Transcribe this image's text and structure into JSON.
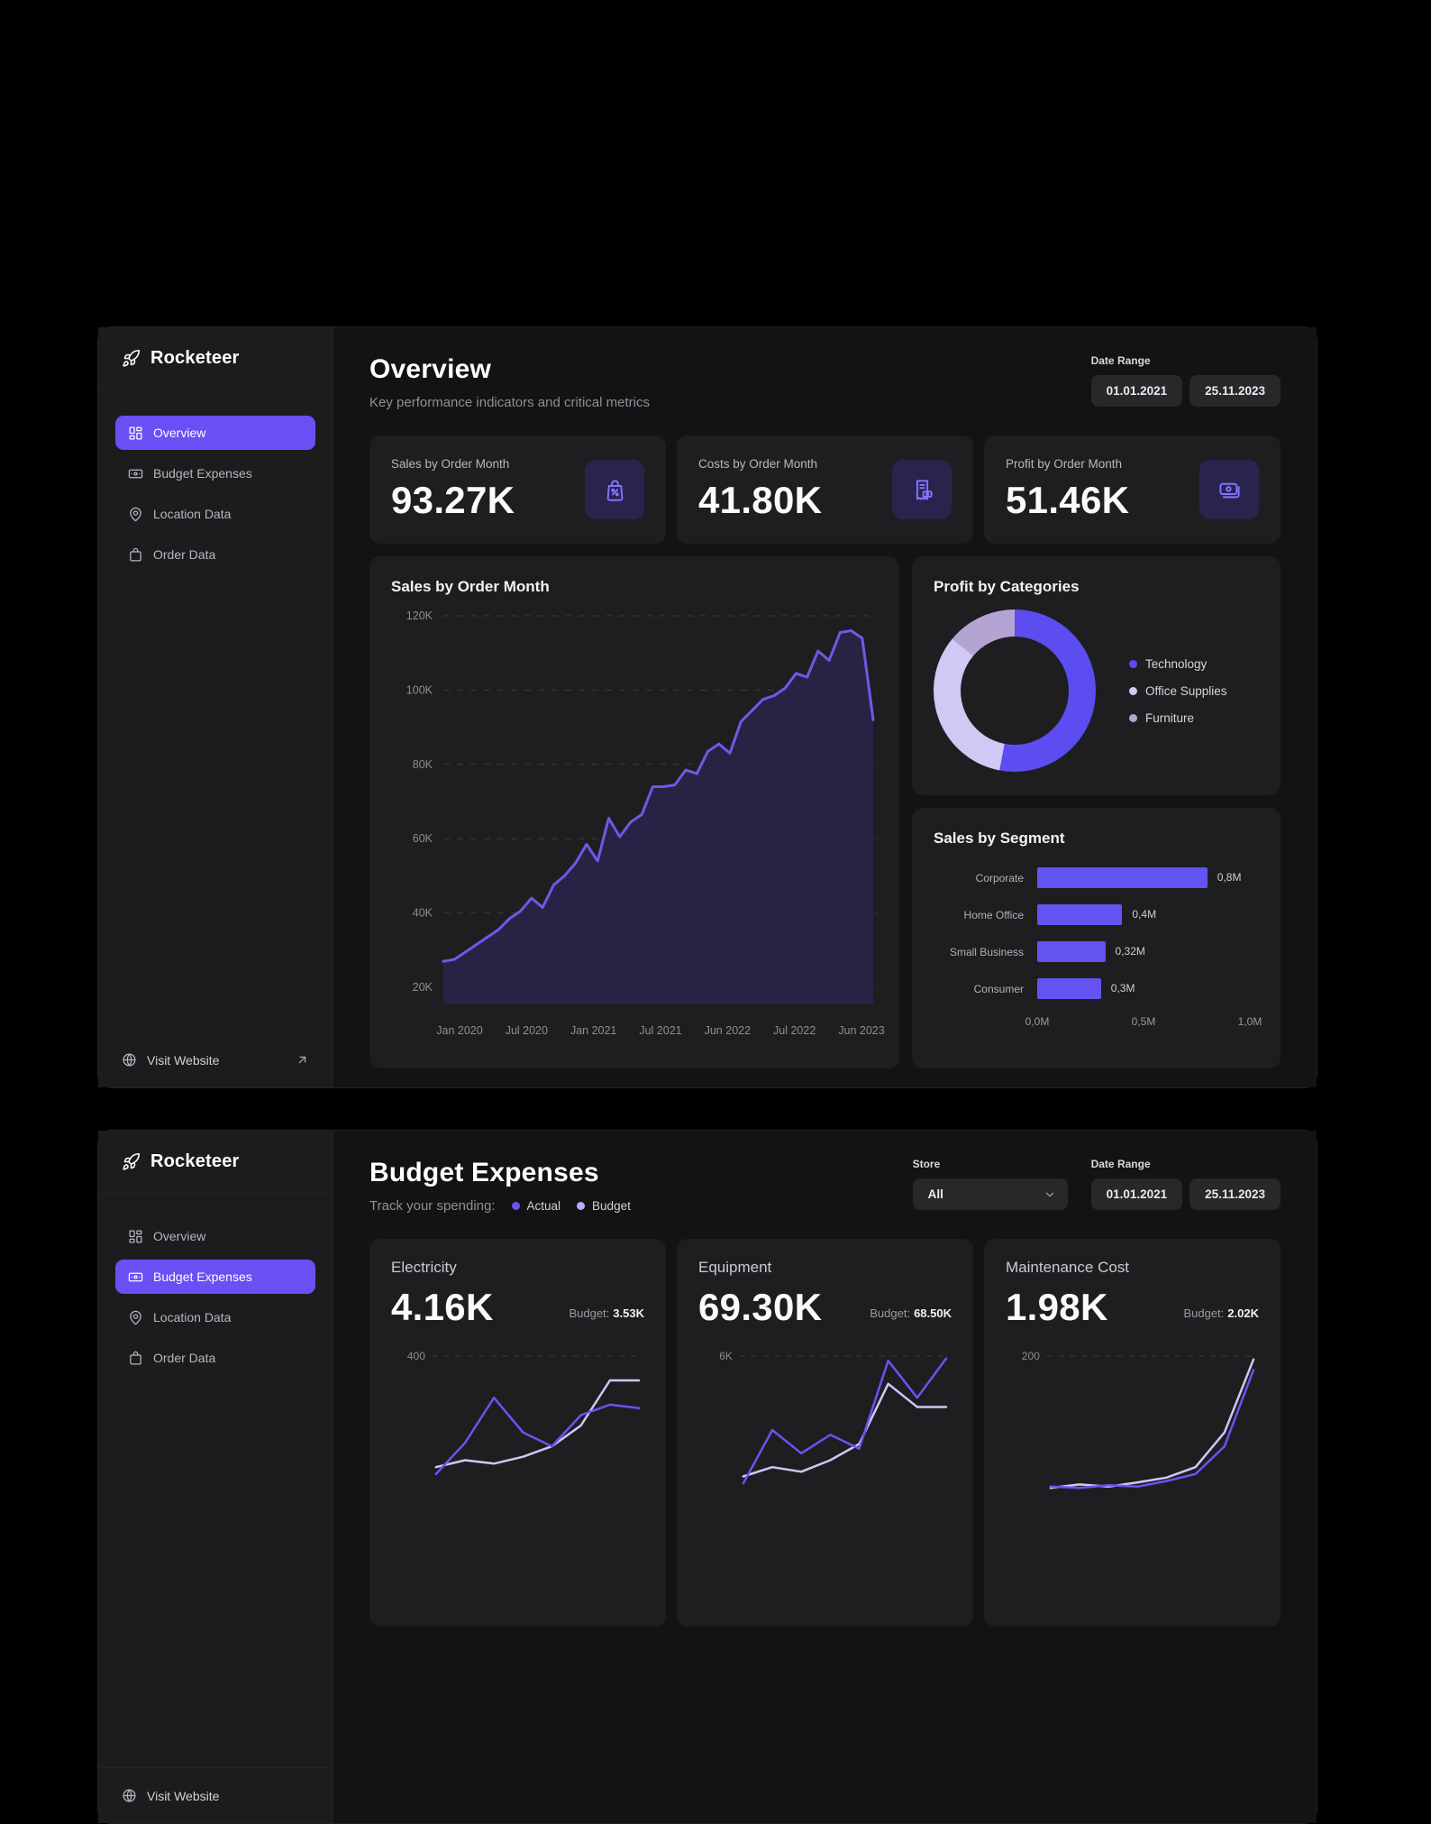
{
  "brand": {
    "name": "Rocketeer"
  },
  "sidebar": {
    "items": [
      {
        "label": "Overview"
      },
      {
        "label": "Budget Expenses"
      },
      {
        "label": "Location Data"
      },
      {
        "label": "Order Data"
      }
    ],
    "footer_label": "Visit Website"
  },
  "overview_panel": {
    "header": {
      "title": "Overview",
      "subtitle": "Key performance indicators and critical metrics"
    },
    "date_range": {
      "label": "Date Range",
      "start": "01.01.2021",
      "end": "25.11.2023"
    },
    "kpis": [
      {
        "label": "Sales by Order Month",
        "value": "93.27K",
        "icon": "bag-percent-icon"
      },
      {
        "label": "Costs by Order Month",
        "value": "41.80K",
        "icon": "receipt-icon"
      },
      {
        "label": "Profit by Order Month",
        "value": "51.46K",
        "icon": "banknotes-icon"
      }
    ]
  },
  "budget_panel": {
    "header": {
      "title": "Budget Expenses",
      "subtitle": "Track your spending:"
    },
    "legend": [
      {
        "label": "Actual",
        "color": "#6a53f2"
      },
      {
        "label": "Budget",
        "color": "#b9abf5"
      }
    ],
    "store": {
      "label": "Store",
      "value": "All"
    },
    "date_range": {
      "label": "Date Range",
      "start": "01.01.2021",
      "end": "25.11.2023"
    },
    "cards": [
      {
        "title": "Electricity",
        "value": "4.16K",
        "budget_label": "Budget:",
        "budget": "3.53K"
      },
      {
        "title": "Equipment",
        "value": "69.30K",
        "budget_label": "Budget:",
        "budget": "68.50K"
      },
      {
        "title": "Maintenance Cost",
        "value": "1.98K",
        "budget_label": "Budget:",
        "budget": "2.02K"
      }
    ]
  },
  "colors": {
    "accent": "#6a4ff5",
    "line": "#6c5ae8",
    "area_fill": "#272345",
    "bar": "#6353f0",
    "grid": "#3b3b3e",
    "tick_text": "#8e8e92"
  },
  "chart_data": [
    {
      "type": "area",
      "title": "Sales by Order Month",
      "unit": "K",
      "ylim": [
        20,
        120
      ],
      "y_ticks": [
        "120K",
        "100K",
        "80K",
        "60K",
        "40K",
        "20K"
      ],
      "x_ticks": [
        "Jan 2020",
        "Jul 2020",
        "Jan 2021",
        "Jul 2021",
        "Jun 2022",
        "Jul 2022",
        "Jun 2023"
      ],
      "values": [
        27,
        27.5,
        29.5,
        31.5,
        33.5,
        35.5,
        38.5,
        40.5,
        44,
        41.5,
        47.5,
        50,
        53.5,
        58.5,
        54,
        65.5,
        60.5,
        64.5,
        66.5,
        74,
        74,
        74.5,
        78.5,
        77.5,
        83.5,
        85.5,
        83,
        91.5,
        94.5,
        97.5,
        98.5,
        100.5,
        104.5,
        103.5,
        110.5,
        108,
        115.5,
        116,
        114,
        92
      ],
      "grid": true,
      "legend_position": "none"
    },
    {
      "type": "pie",
      "title": "Profit by Categories",
      "donut": true,
      "legend_position": "right",
      "segments": [
        {
          "label": "Technology",
          "pct": 53,
          "color": "#5b4df0"
        },
        {
          "label": "Office Supplies",
          "pct": 33,
          "color": "#cfc9f4"
        },
        {
          "label": "Furniture",
          "pct": 14,
          "color": "#b4a4d4"
        }
      ]
    },
    {
      "type": "bar",
      "title": "Sales by Segment",
      "orientation": "horizontal",
      "categories": [
        "Corporate",
        "Home Office",
        "Small Business",
        "Consumer"
      ],
      "values": [
        0.8,
        0.4,
        0.32,
        0.3
      ],
      "value_labels": [
        "0,8M",
        "0,4M",
        "0,32M",
        "0,3M"
      ],
      "x_ticks": [
        "0,0M",
        "0,5M",
        "1,0M"
      ],
      "xlim": [
        0,
        1.0
      ]
    },
    {
      "type": "line",
      "card": "Electricity",
      "gridline_label": "400",
      "gridline_value": 400,
      "series": [
        {
          "name": "Budget",
          "color": "#cfc8f4",
          "values": [
            80,
            100,
            90,
            110,
            140,
            200,
            330,
            330
          ]
        },
        {
          "name": "Actual",
          "color": "#6a53f2",
          "values": [
            60,
            150,
            280,
            180,
            140,
            230,
            260,
            250
          ]
        }
      ]
    },
    {
      "type": "line",
      "card": "Equipment",
      "gridline_label": "6K",
      "gridline_value": 6000,
      "series": [
        {
          "name": "Budget",
          "color": "#cfc8f4",
          "values": [
            800,
            1200,
            1000,
            1500,
            2200,
            4800,
            3800,
            3800
          ]
        },
        {
          "name": "Actual",
          "color": "#6a53f2",
          "values": [
            500,
            2800,
            1800,
            2600,
            2000,
            5800,
            4200,
            5900
          ]
        }
      ]
    },
    {
      "type": "line",
      "card": "Maintenance Cost",
      "gridline_label": "200",
      "gridline_value": 200,
      "series": [
        {
          "name": "Budget",
          "color": "#cfc8f4",
          "values": [
            10,
            15,
            12,
            18,
            25,
            40,
            90,
            195
          ]
        },
        {
          "name": "Actual",
          "color": "#6a53f2",
          "values": [
            12,
            10,
            14,
            12,
            20,
            30,
            70,
            180
          ]
        }
      ]
    }
  ]
}
